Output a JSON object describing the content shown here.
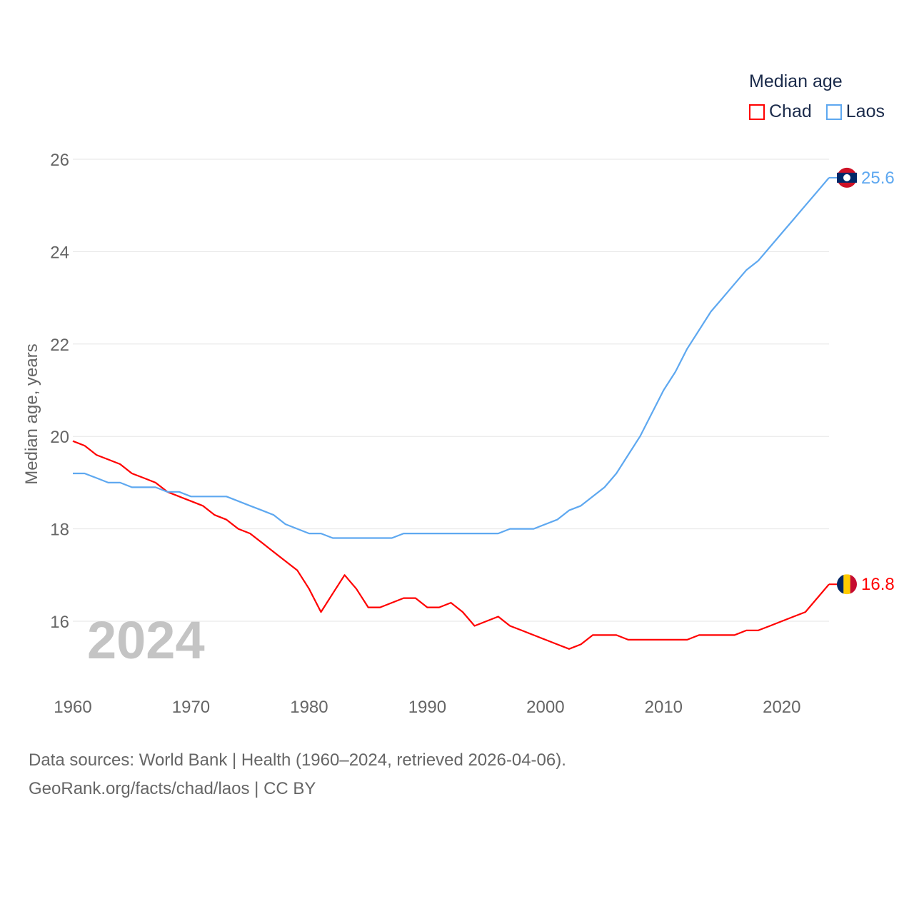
{
  "chart_data": {
    "type": "line",
    "title": "",
    "legend_title": "Median age",
    "legend_position": "top-right",
    "ylabel": "Median age, years",
    "xlabel": "",
    "xlim": [
      1960,
      2024
    ],
    "ylim": [
      15,
      27
    ],
    "yticks": [
      16,
      18,
      20,
      22,
      24,
      26
    ],
    "xticks": [
      1960,
      1970,
      1980,
      1990,
      2000,
      2010,
      2020
    ],
    "grid": true,
    "year_watermark": "2024",
    "x": [
      1960,
      1961,
      1962,
      1963,
      1964,
      1965,
      1966,
      1967,
      1968,
      1969,
      1970,
      1971,
      1972,
      1973,
      1974,
      1975,
      1976,
      1977,
      1978,
      1979,
      1980,
      1981,
      1982,
      1983,
      1984,
      1985,
      1986,
      1987,
      1988,
      1989,
      1990,
      1991,
      1992,
      1993,
      1994,
      1995,
      1996,
      1997,
      1998,
      1999,
      2000,
      2001,
      2002,
      2003,
      2004,
      2005,
      2006,
      2007,
      2008,
      2009,
      2010,
      2011,
      2012,
      2013,
      2014,
      2015,
      2016,
      2017,
      2018,
      2019,
      2020,
      2021,
      2022,
      2023,
      2024
    ],
    "series": [
      {
        "name": "Chad",
        "color": "#ff0000",
        "end_label": "16.8",
        "values": [
          19.9,
          19.8,
          19.6,
          19.5,
          19.4,
          19.2,
          19.1,
          19.0,
          18.8,
          18.7,
          18.6,
          18.5,
          18.3,
          18.2,
          18.0,
          17.9,
          17.7,
          17.5,
          17.3,
          17.1,
          16.7,
          16.2,
          16.6,
          17.0,
          16.7,
          16.3,
          16.3,
          16.4,
          16.5,
          16.5,
          16.3,
          16.3,
          16.4,
          16.2,
          15.9,
          16.0,
          16.1,
          15.9,
          15.8,
          15.7,
          15.6,
          15.5,
          15.4,
          15.5,
          15.7,
          15.7,
          15.7,
          15.6,
          15.6,
          15.6,
          15.6,
          15.6,
          15.6,
          15.7,
          15.7,
          15.7,
          15.7,
          15.8,
          15.8,
          15.9,
          16.0,
          16.1,
          16.2,
          16.5,
          16.8
        ]
      },
      {
        "name": "Laos",
        "color": "#5ea8f0",
        "end_label": "25.6",
        "values": [
          19.2,
          19.2,
          19.1,
          19.0,
          19.0,
          18.9,
          18.9,
          18.9,
          18.8,
          18.8,
          18.7,
          18.7,
          18.7,
          18.7,
          18.6,
          18.5,
          18.4,
          18.3,
          18.1,
          18.0,
          17.9,
          17.9,
          17.8,
          17.8,
          17.8,
          17.8,
          17.8,
          17.8,
          17.9,
          17.9,
          17.9,
          17.9,
          17.9,
          17.9,
          17.9,
          17.9,
          17.9,
          18.0,
          18.0,
          18.0,
          18.1,
          18.2,
          18.4,
          18.5,
          18.7,
          18.9,
          19.2,
          19.6,
          20.0,
          20.5,
          21.0,
          21.4,
          21.9,
          22.3,
          22.7,
          23.0,
          23.3,
          23.6,
          23.8,
          24.1,
          24.4,
          24.7,
          25.0,
          25.3,
          25.6
        ]
      }
    ]
  },
  "footer": {
    "line1": "Data sources: World Bank | Health (1960–2024, retrieved 2026-04-06).",
    "line2": "GeoRank.org/facts/chad/laos | CC BY"
  }
}
